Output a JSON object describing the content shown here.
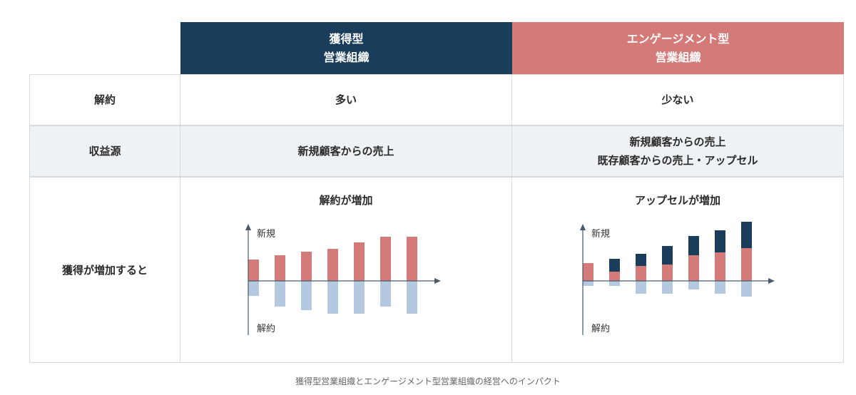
{
  "header": {
    "col_a": {
      "line1": "獲得型",
      "line2": "営業組織"
    },
    "col_b": {
      "line1": "エンゲージメント型",
      "line2": "営業組織"
    }
  },
  "rows": [
    {
      "label": "解約",
      "a": [
        "多い"
      ],
      "b": [
        "少ない"
      ]
    },
    {
      "label": "収益源",
      "a": [
        "新規顧客からの売上"
      ],
      "b": [
        "新規顧客からの売上",
        "既存顧客からの売上・アップセル"
      ]
    },
    {
      "label": "獲得が増加すると"
    }
  ],
  "charts": {
    "left": {
      "title": "解約が増加",
      "y_top_label": "新規",
      "y_bottom_label": "解約",
      "new": [
        30,
        36,
        41,
        45,
        54,
        62,
        62
      ],
      "churn": [
        21,
        36,
        41,
        46,
        46,
        36,
        46
      ]
    },
    "right": {
      "title": "アップセルが増加",
      "y_top_label": "新規",
      "y_bottom_label": "解約",
      "new": [
        25,
        13,
        21,
        23,
        36,
        40,
        46
      ],
      "upsell": [
        0,
        18,
        17,
        26,
        27,
        31,
        37
      ],
      "churn": [
        7,
        7,
        18,
        18,
        12,
        18,
        22
      ]
    }
  },
  "colors": {
    "navy": "#1a3d5c",
    "coral": "#d47a78",
    "light_blue": "#b4c9df",
    "row_alt": "#eff2f5",
    "axis": "#4a5a6a"
  },
  "caption": "獲得型営業組織とエンゲージメント型営業組織の経営へのインパクト"
}
